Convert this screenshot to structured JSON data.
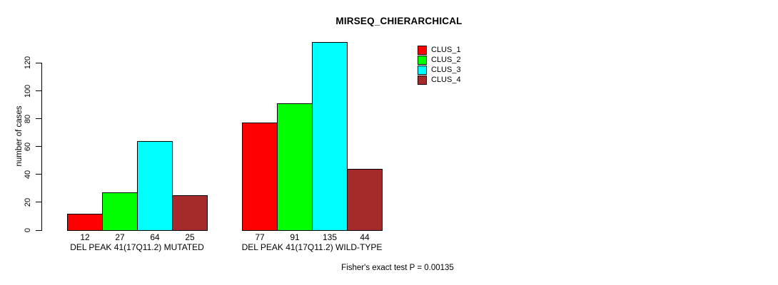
{
  "chart_data": {
    "type": "bar",
    "title": "MIRSEQ_CHIERARCHICAL",
    "ylabel": "number of cases",
    "xlabel": "",
    "yticks": [
      0,
      20,
      40,
      60,
      80,
      100,
      120
    ],
    "ylim": [
      0,
      137
    ],
    "grid": false,
    "legend_position": "top-right",
    "categories": [
      "DEL PEAK 41(17Q11.2) MUTATED",
      "DEL PEAK 41(17Q11.2) WILD-TYPE"
    ],
    "series": [
      {
        "name": "CLUS_1",
        "color": "#ff0000",
        "values": [
          12,
          77
        ]
      },
      {
        "name": "CLUS_2",
        "color": "#00ff00",
        "values": [
          27,
          91
        ]
      },
      {
        "name": "CLUS_3",
        "color": "#00ffff",
        "values": [
          64,
          135
        ]
      },
      {
        "name": "CLUS_4",
        "color": "#a52a2a",
        "values": [
          25,
          44
        ]
      }
    ],
    "groups": [
      {
        "label": "DEL PEAK 41(17Q11.2) MUTATED",
        "values": [
          12,
          27,
          64,
          25
        ]
      },
      {
        "label": "DEL PEAK 41(17Q11.2) WILD-TYPE",
        "values": [
          77,
          91,
          135,
          44
        ]
      }
    ],
    "bar_border_color": "#000000",
    "annotation": "Fisher's exact test P = 0.00135"
  }
}
